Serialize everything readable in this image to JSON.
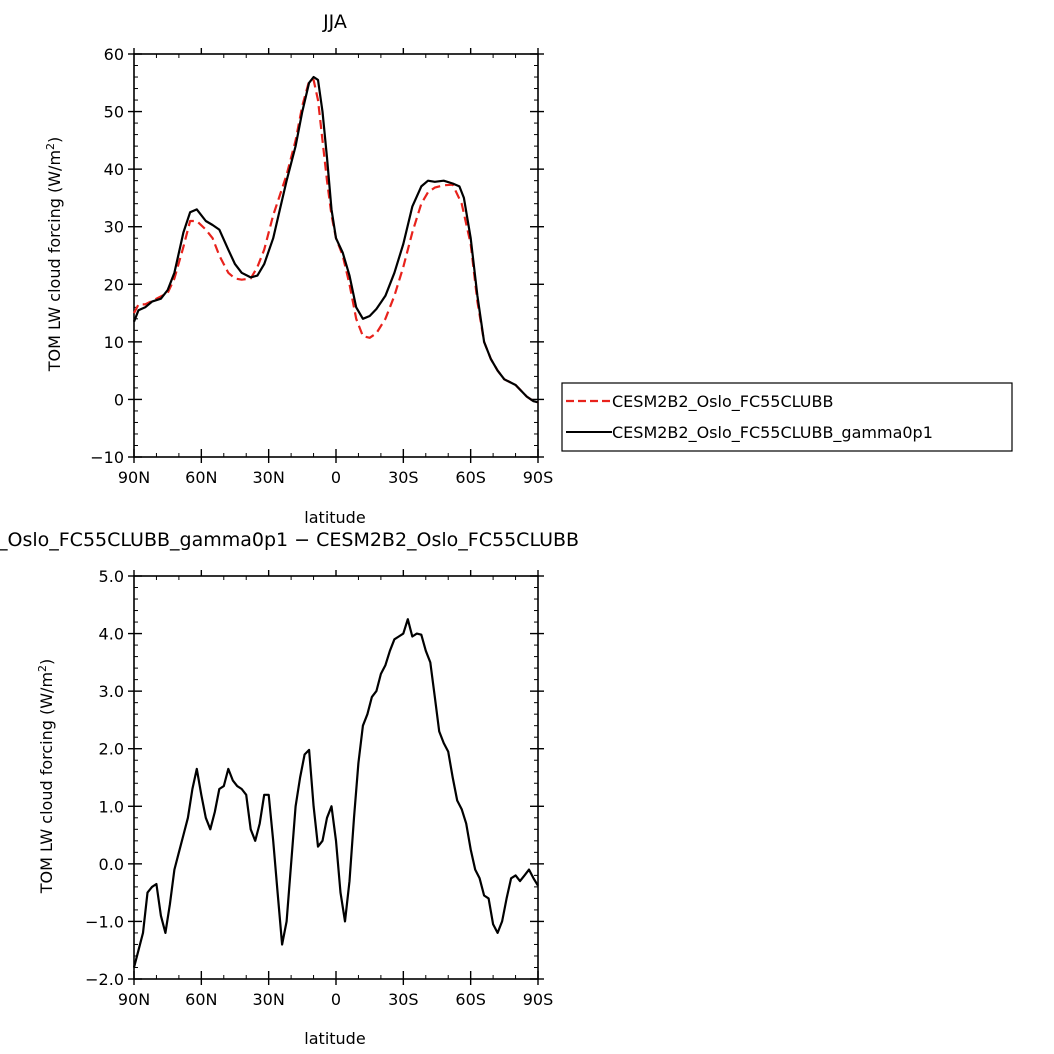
{
  "chart_data": [
    {
      "type": "line",
      "title": "JJA",
      "xlabel": "latitude",
      "ylabel": "TOM LW cloud forcing (W/m",
      "ylabel_sup": "2",
      "ylabel_end": ")",
      "xlim": [
        90,
        -90
      ],
      "ylim": [
        -10,
        60
      ],
      "xticks": [
        90,
        60,
        30,
        0,
        -30,
        -60,
        -90
      ],
      "xtick_labels": [
        "90N",
        "60N",
        "30N",
        "0",
        "30S",
        "60S",
        "90S"
      ],
      "yticks": [
        -10,
        0,
        10,
        20,
        30,
        40,
        50,
        60
      ],
      "ytick_labels": [
        "−10",
        "0",
        "10",
        "20",
        "30",
        "40",
        "50",
        "60"
      ],
      "legend": "right",
      "series": [
        {
          "name": "CESM2B2_Oslo_FC55CLUBB",
          "color": "#e8221c",
          "dash": "dashed",
          "x": [
            90,
            88,
            85,
            80,
            75,
            72,
            68,
            65,
            62,
            58,
            55,
            52,
            48,
            45,
            42,
            38,
            35,
            32,
            28,
            25,
            22,
            18,
            15,
            12,
            10,
            8,
            6,
            4,
            2,
            0,
            -3,
            -6,
            -9,
            -12,
            -15,
            -18,
            -22,
            -26,
            -30,
            -34,
            -38,
            -41,
            -44,
            -48,
            -52,
            -56,
            -60,
            -63,
            -66,
            -69,
            -72,
            -75,
            -80,
            -85,
            -88,
            -90
          ],
          "y": [
            15,
            16.5,
            16.5,
            17.5,
            18.5,
            21,
            26.5,
            31,
            31,
            29.5,
            28,
            25,
            22,
            21,
            20.8,
            21,
            23,
            26,
            32,
            35.5,
            39,
            45,
            51,
            55.3,
            55.5,
            52,
            45,
            38,
            32,
            28,
            25,
            20,
            14,
            11,
            10.7,
            11.5,
            14,
            18,
            23,
            29,
            34,
            36,
            36.8,
            37.2,
            37.3,
            34,
            27,
            17,
            10,
            7,
            5,
            3.5,
            2.5,
            0.5,
            -0.3,
            -0.5
          ]
        },
        {
          "name": "CESM2B2_Oslo_FC55CLUBB_gamma0p1",
          "color": "#000000",
          "dash": "solid",
          "x": [
            90,
            88,
            85,
            82,
            78,
            75,
            72,
            68,
            65,
            62,
            58,
            55,
            52,
            48,
            45,
            42,
            38,
            35,
            32,
            28,
            25,
            22,
            18,
            15,
            12,
            10,
            8,
            6,
            4,
            2,
            0,
            -3,
            -6,
            -9,
            -12,
            -15,
            -18,
            -22,
            -26,
            -30,
            -34,
            -38,
            -41,
            -44,
            -48,
            -52,
            -55,
            -57,
            -60,
            -63,
            -66,
            -69,
            -72,
            -75,
            -80,
            -85,
            -88,
            -90
          ],
          "y": [
            13.5,
            15.5,
            16,
            17,
            17.5,
            19,
            22,
            29,
            32.5,
            33,
            31,
            30.3,
            29.5,
            26,
            23.5,
            22,
            21.2,
            21.5,
            23.5,
            28,
            33,
            38,
            44,
            50,
            55,
            56,
            55.5,
            50,
            42,
            33,
            28,
            25.5,
            21.5,
            16,
            14,
            14.5,
            15.7,
            18,
            22,
            27,
            33.5,
            37,
            38,
            37.8,
            38,
            37.5,
            37,
            35,
            28,
            18,
            10,
            7,
            5,
            3.5,
            2.5,
            0.5,
            -0.3,
            -0.5
          ]
        }
      ]
    },
    {
      "type": "line",
      "title": "_Oslo_FC55CLUBB_gamma0p1 − CESM2B2_Oslo_FC55CLUBB",
      "xlabel": "latitude",
      "ylabel": "TOM LW cloud forcing (W/m",
      "ylabel_sup": "2",
      "ylabel_end": ")",
      "xlim": [
        90,
        -90
      ],
      "ylim": [
        -2,
        5
      ],
      "xticks": [
        90,
        60,
        30,
        0,
        -30,
        -60,
        -90
      ],
      "xtick_labels": [
        "90N",
        "60N",
        "30N",
        "0",
        "30S",
        "60S",
        "90S"
      ],
      "yticks": [
        -2,
        -1,
        0,
        1,
        2,
        3,
        4,
        5
      ],
      "ytick_labels": [
        "−2.0",
        "−1.0",
        "0.0",
        "1.0",
        "2.0",
        "3.0",
        "4.0",
        "5.0"
      ],
      "series": [
        {
          "name": "",
          "color": "#000000",
          "dash": "solid",
          "x": [
            90,
            88,
            86,
            84,
            82,
            80,
            78,
            76,
            74,
            72,
            70,
            68,
            66,
            64,
            62,
            60,
            58,
            56,
            54,
            52,
            50,
            48,
            46,
            44,
            42,
            40,
            38,
            36,
            34,
            32,
            30,
            28,
            26,
            24,
            22,
            20,
            18,
            16,
            14,
            12,
            10,
            8,
            6,
            4,
            2,
            0,
            -2,
            -4,
            -6,
            -8,
            -10,
            -12,
            -14,
            -16,
            -18,
            -20,
            -22,
            -24,
            -26,
            -28,
            -30,
            -32,
            -34,
            -36,
            -38,
            -40,
            -42,
            -44,
            -46,
            -48,
            -50,
            -52,
            -54,
            -56,
            -58,
            -60,
            -62,
            -64,
            -66,
            -68,
            -70,
            -72,
            -74,
            -76,
            -78,
            -80,
            -82,
            -84,
            -86,
            -88,
            -90
          ],
          "y": [
            -1.8,
            -1.5,
            -1.2,
            -0.5,
            -0.4,
            -0.35,
            -0.9,
            -1.2,
            -0.7,
            -0.1,
            0.2,
            0.5,
            0.8,
            1.3,
            1.65,
            1.2,
            0.8,
            0.6,
            0.9,
            1.3,
            1.35,
            1.65,
            1.45,
            1.35,
            1.3,
            1.2,
            0.6,
            0.4,
            0.7,
            1.2,
            1.2,
            0.4,
            -0.5,
            -1.4,
            -1.0,
            0.0,
            1.0,
            1.5,
            1.9,
            1.98,
            1.0,
            0.3,
            0.4,
            0.8,
            1.0,
            0.4,
            -0.5,
            -1.0,
            -0.3,
            0.8,
            1.75,
            2.4,
            2.6,
            2.9,
            3.0,
            3.3,
            3.45,
            3.7,
            3.9,
            3.95,
            4.0,
            4.25,
            3.95,
            4.0,
            3.98,
            3.7,
            3.5,
            2.9,
            2.3,
            2.1,
            1.95,
            1.5,
            1.1,
            0.95,
            0.7,
            0.25,
            -0.1,
            -0.25,
            -0.55,
            -0.6,
            -1.05,
            -1.2,
            -1.0,
            -0.6,
            -0.25,
            -0.2,
            -0.3,
            -0.2,
            -0.1,
            -0.25,
            -0.38
          ]
        }
      ]
    }
  ]
}
